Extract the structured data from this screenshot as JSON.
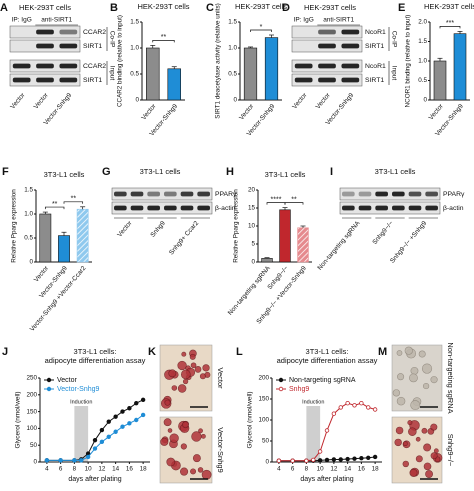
{
  "chart_data": [
    {
      "type": "bar",
      "panel_label": "B",
      "title": "HEK-293T cells",
      "ylabel": "CCAR2 binding (relative to input)",
      "categories": [
        "Vector",
        "Vector-Snhg9"
      ],
      "values": [
        1.0,
        0.6
      ],
      "errors": [
        0.05,
        0.04
      ],
      "colors": [
        "#8c8c8c",
        "#1f8dd6"
      ],
      "hatch": [
        false,
        false
      ],
      "significance": [
        "**"
      ],
      "ylim": [
        0,
        1.5
      ],
      "yticks": [
        0,
        0.5,
        {
          "value": 1,
          "label": "1.0"
        },
        1.5
      ]
    },
    {
      "type": "bar",
      "panel_label": "C",
      "title": "HEK-293T cells",
      "ylabel": "SIRT1 deacetylase activity (relative units)",
      "categories": [
        "Vector",
        "Vector-Snhg9"
      ],
      "values": [
        1.0,
        1.2
      ],
      "errors": [
        0.02,
        0.05
      ],
      "colors": [
        "#8c8c8c",
        "#1f8dd6"
      ],
      "hatch": [
        false,
        false
      ],
      "significance": [
        "*"
      ],
      "ylim": [
        0,
        1.5
      ],
      "yticks": [
        0,
        0.5,
        {
          "value": 1,
          "label": "1.0"
        },
        1.5
      ]
    },
    {
      "type": "bar",
      "panel_label": "E",
      "title": "HEK-293T cells",
      "ylabel": "NCOR1 binding (relative to input)",
      "categories": [
        "Vector",
        "Vector-Snhg9"
      ],
      "values": [
        1.0,
        1.7
      ],
      "errors": [
        0.07,
        0.06
      ],
      "colors": [
        "#8c8c8c",
        "#1f8dd6"
      ],
      "hatch": [
        false,
        false
      ],
      "significance": [
        "***"
      ],
      "ylim": [
        0,
        2
      ],
      "yticks": [
        0,
        0.5,
        {
          "value": 1,
          "label": "1.0"
        },
        1.5,
        {
          "value": 2,
          "label": "2.0"
        }
      ]
    },
    {
      "type": "bar",
      "panel_label": "F",
      "title": "3T3-L1 cells",
      "ylabel": "Relative Pparg expression",
      "categories": [
        "Vector",
        "Vector-Snhg9",
        "Vector-Snhg9 +Vector-Ccar2"
      ],
      "values": [
        1.0,
        0.55,
        1.1
      ],
      "errors": [
        0.04,
        0.07,
        0.05
      ],
      "colors": [
        "#8c8c8c",
        "#1f8dd6",
        "#8fc9ee"
      ],
      "hatch": [
        false,
        false,
        true
      ],
      "significance": [
        "**",
        "**"
      ],
      "ylim": [
        0,
        1.5
      ],
      "yticks": [
        0,
        0.5,
        {
          "value": 1,
          "label": "1.0"
        },
        1.5
      ]
    },
    {
      "type": "bar",
      "panel_label": "H",
      "title": "3T3-L1 cells",
      "ylabel": "Relative Pparg expression",
      "categories": [
        "Non-targeting sgRNA",
        "Snhg9−/−",
        "Snhg9−/− +Vector-Snhg9"
      ],
      "values": [
        1.0,
        14.5,
        9.5
      ],
      "errors": [
        0.2,
        0.6,
        0.5
      ],
      "colors": [
        "#8c8c8c",
        "#c0272d",
        "#e58a8e"
      ],
      "hatch": [
        false,
        false,
        true
      ],
      "significance": [
        "****",
        "**"
      ],
      "ylim": [
        0,
        20
      ],
      "yticks": [
        0,
        5,
        10,
        15,
        20
      ]
    },
    {
      "type": "line",
      "panel_label": "J",
      "title": "3T3-L1 cells:",
      "subtitle": "adipocyte differentiation assay",
      "ylabel": "Glycerol (nmol/well)",
      "xlabel": "days after plating",
      "x": [
        4,
        6,
        8,
        9,
        10,
        11,
        12,
        13,
        14,
        15,
        16,
        17,
        18
      ],
      "series": [
        {
          "name": "Vector",
          "color": "#111111",
          "marker": "filled",
          "values": [
            5,
            5,
            5,
            8,
            25,
            65,
            95,
            120,
            135,
            150,
            160,
            175,
            185
          ]
        },
        {
          "name": "Vector-Snhg9",
          "color": "#1f8dd6",
          "marker": "filled",
          "values": [
            5,
            5,
            5,
            5,
            15,
            40,
            60,
            75,
            90,
            105,
            115,
            125,
            140
          ]
        }
      ],
      "shaded_region": [
        8,
        10
      ],
      "shaded_label": "Induction",
      "xlim": [
        3,
        19
      ],
      "xticks": [
        4,
        6,
        8,
        10,
        12,
        14,
        16,
        18
      ],
      "ylim": [
        0,
        250
      ],
      "yticks": [
        0,
        50,
        100,
        150,
        200,
        250
      ]
    },
    {
      "type": "line",
      "panel_label": "L",
      "title": "3T3-L1 cells:",
      "subtitle": "adipocyte differentiation assay",
      "ylabel": "Glycerol (nmol/well)",
      "xlabel": "days after plating",
      "x": [
        4,
        6,
        8,
        9,
        10,
        11,
        12,
        13,
        14,
        15,
        16,
        17,
        18
      ],
      "series": [
        {
          "name": "Non-targeting sgRNA",
          "color": "#111111",
          "marker": "filled",
          "values": [
            3,
            3,
            3,
            3,
            4,
            5,
            6,
            6,
            7,
            8,
            9,
            10,
            12
          ]
        },
        {
          "name": "Snhg9",
          "color": "#c0272d",
          "marker": "open",
          "values": [
            3,
            3,
            3,
            5,
            25,
            75,
            115,
            130,
            140,
            135,
            140,
            130,
            125
          ]
        }
      ],
      "shaded_region": [
        8,
        10
      ],
      "shaded_label": "Induction",
      "xlim": [
        3,
        19
      ],
      "xticks": [
        4,
        6,
        8,
        10,
        12,
        14,
        16,
        18
      ],
      "ylim": [
        0,
        200
      ],
      "yticks": [
        0,
        50,
        100,
        150,
        200
      ]
    }
  ],
  "blots": [
    {
      "panel_label": "A",
      "title": "HEK-293T cells",
      "header": [
        "IP: IgG",
        "anti-SIRT1"
      ],
      "rows": [
        "CCAR2",
        "SIRT1",
        "CCAR2",
        "SIRT1"
      ],
      "groups": [
        "Co-IP",
        "Input"
      ],
      "lanes": [
        "Vector",
        "Vector",
        "Vector-Snhg9"
      ]
    },
    {
      "panel_label": "D",
      "title": "HEK-293T cells",
      "header": [
        "IP: IgG",
        "anti-SIRT1"
      ],
      "rows": [
        "NcoR1",
        "SIRT1",
        "NcoR1",
        "SIRT1"
      ],
      "groups": [
        "Co-IP",
        "Input"
      ],
      "lanes": [
        "Vector",
        "Vector",
        "Vector-Snhg9"
      ]
    },
    {
      "panel_label": "G",
      "title": "3T3-L1 cells",
      "rows": [
        "PPARγ",
        "β-actin"
      ],
      "lanes": [
        "Vector",
        "Snhg9",
        "Snhg9+ Ccar2"
      ]
    },
    {
      "panel_label": "I",
      "title": "3T3-L1 cells",
      "rows": [
        "PPARγ",
        "β-actin"
      ],
      "lanes": [
        "Non-targeting sgRNA",
        "Snhg9−/−",
        "Snhg9−/− +Snhg9"
      ]
    }
  ],
  "micrographs": [
    {
      "panel_label": "K",
      "labels": [
        "Vector",
        "Vector-Snhg9"
      ]
    },
    {
      "panel_label": "M",
      "labels": [
        "Non-targeting sgRNA",
        "Snhg9−/−"
      ]
    }
  ]
}
